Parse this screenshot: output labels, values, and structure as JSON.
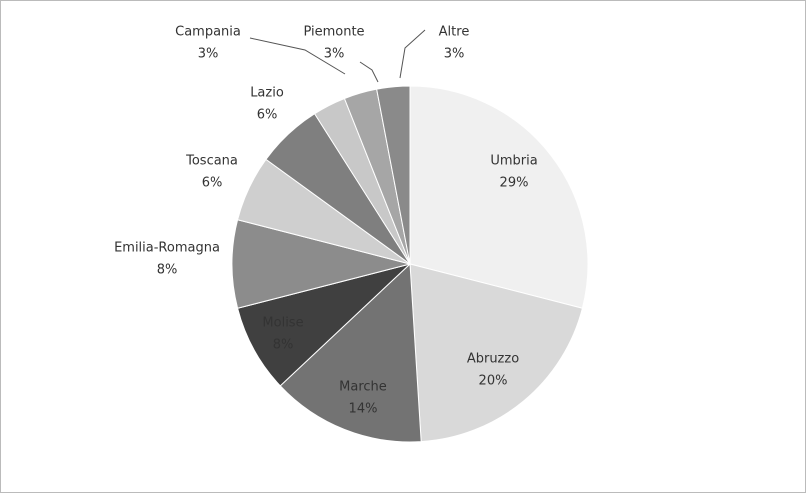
{
  "chart_data": {
    "type": "pie",
    "categories": [
      "Umbria",
      "Abruzzo",
      "Marche",
      "Molise",
      "Emilia-Romagna",
      "Toscana",
      "Lazio",
      "Campania",
      "Piemonte",
      "Altre"
    ],
    "values": [
      29,
      20,
      14,
      8,
      8,
      6,
      6,
      3,
      3,
      3
    ],
    "value_labels": [
      "29%",
      "20%",
      "14%",
      "8%",
      "8%",
      "6%",
      "6%",
      "3%",
      "3%",
      "3%"
    ],
    "colors": [
      "#f0f0f0",
      "#d9d9d9",
      "#737373",
      "#404040",
      "#8c8c8c",
      "#cfcfcf",
      "#7f7f7f",
      "#c8c8c8",
      "#a6a6a6",
      "#8a8a8a"
    ]
  }
}
